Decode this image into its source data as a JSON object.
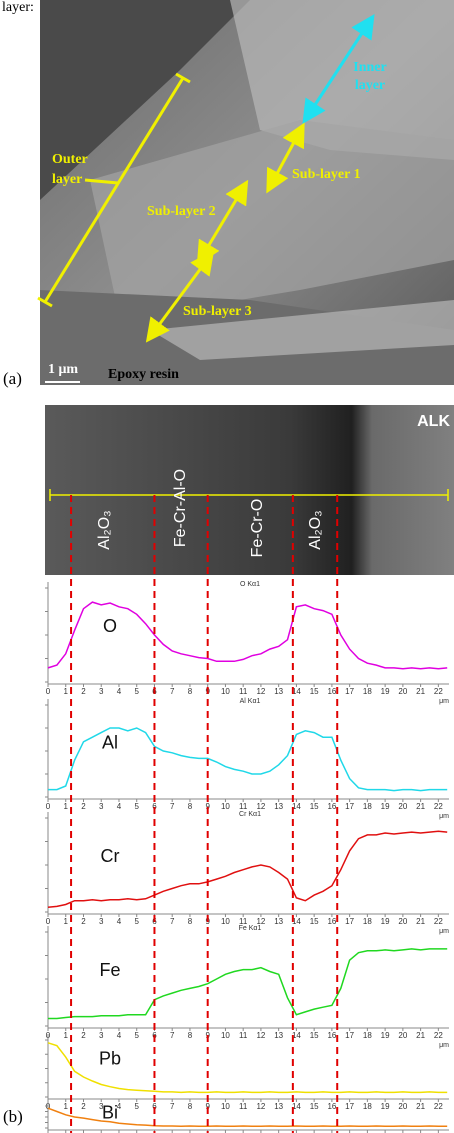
{
  "caption_fragment": "layer:",
  "panel_a": {
    "label": "(a)",
    "inner_layer": [
      "Inner",
      "layer"
    ],
    "outer_layer": [
      "Outer",
      "layer"
    ],
    "sub_layer_1": "Sub-layer 1",
    "sub_layer_2": "Sub-layer 2",
    "sub_layer_3": "Sub-layer 3",
    "epoxy": "Epoxy resin",
    "scale_bar": "1 μm"
  },
  "panel_b": {
    "label": "(b)",
    "corner_tag": "ALK",
    "phases": [
      "Al₂O₃",
      "Fe-Cr-Al-O",
      "Fe-Cr-O",
      "Al₂O₃"
    ],
    "boundaries": [
      1.3,
      6,
      9,
      13.8,
      16.3
    ],
    "xlim": [
      0,
      22.6
    ],
    "xticks": [
      0,
      1,
      2,
      3,
      4,
      5,
      6,
      7,
      8,
      9,
      10,
      11,
      12,
      13,
      14,
      15,
      16,
      17,
      18,
      19,
      20,
      21,
      22
    ],
    "x_unit": "μm",
    "ylim": [
      0,
      100
    ],
    "x": [
      0,
      0.5,
      1,
      1.5,
      2,
      2.5,
      3,
      3.5,
      4,
      4.5,
      5,
      5.5,
      6,
      6.5,
      7,
      7.5,
      8,
      8.5,
      9,
      9.5,
      10,
      10.5,
      11,
      11.5,
      12,
      12.5,
      13,
      13.5,
      14,
      14.5,
      15,
      15.5,
      16,
      16.5,
      17,
      17.5,
      18,
      18.5,
      19,
      19.5,
      20,
      20.5,
      21,
      21.5,
      22,
      22.5
    ],
    "scans": [
      {
        "element": "O",
        "title": "O Kα1",
        "color": "#e000e0",
        "values": [
          15,
          18,
          30,
          55,
          78,
          85,
          82,
          84,
          80,
          78,
          72,
          62,
          50,
          40,
          33,
          30,
          28,
          26,
          25,
          22,
          22,
          22,
          24,
          28,
          30,
          35,
          38,
          45,
          80,
          82,
          78,
          76,
          72,
          50,
          35,
          25,
          20,
          18,
          15,
          15,
          14,
          15,
          14,
          15,
          14,
          15
        ]
      },
      {
        "element": "Al",
        "title": "Al Kα1",
        "color": "#20d8e8",
        "values": [
          8,
          8,
          12,
          40,
          60,
          65,
          70,
          75,
          75,
          72,
          75,
          70,
          55,
          50,
          48,
          45,
          43,
          42,
          42,
          38,
          33,
          30,
          28,
          25,
          25,
          28,
          35,
          45,
          68,
          72,
          70,
          65,
          65,
          40,
          20,
          10,
          8,
          8,
          8,
          7,
          8,
          8,
          7,
          8,
          8,
          8
        ]
      },
      {
        "element": "Cr",
        "title": "Cr Kα1",
        "color": "#e01010",
        "values": [
          5,
          6,
          8,
          12,
          12,
          13,
          12,
          13,
          13,
          14,
          13,
          14,
          18,
          22,
          25,
          28,
          30,
          30,
          32,
          35,
          38,
          42,
          45,
          48,
          50,
          48,
          42,
          35,
          15,
          12,
          18,
          22,
          28,
          45,
          65,
          78,
          82,
          82,
          84,
          83,
          84,
          85,
          84,
          85,
          86,
          85
        ]
      },
      {
        "element": "Fe",
        "title": "Fe Kα1",
        "color": "#20d820",
        "values": [
          8,
          8,
          9,
          10,
          10,
          10,
          11,
          11,
          11,
          12,
          12,
          12,
          28,
          32,
          35,
          38,
          40,
          42,
          45,
          50,
          55,
          58,
          60,
          60,
          62,
          58,
          55,
          30,
          12,
          15,
          18,
          20,
          22,
          40,
          70,
          78,
          80,
          80,
          81,
          80,
          81,
          82,
          81,
          82,
          82,
          82
        ]
      },
      {
        "element": "Pb",
        "title": null,
        "color": "#f0e000",
        "values": [
          95,
          90,
          70,
          45,
          35,
          28,
          22,
          18,
          15,
          13,
          12,
          11,
          10,
          9,
          9,
          8,
          9,
          8,
          8,
          9,
          8,
          8,
          9,
          8,
          8,
          9,
          8,
          8,
          9,
          8,
          8,
          9,
          8,
          8,
          9,
          8,
          8,
          9,
          8,
          8,
          9,
          8,
          8,
          9,
          8,
          8
        ]
      },
      {
        "element": "Bi",
        "title": null,
        "color": "#f08010",
        "values": [
          90,
          75,
          60,
          50,
          45,
          38,
          32,
          28,
          22,
          18,
          15,
          13,
          10,
          9,
          9,
          8,
          9,
          8,
          8,
          9,
          8,
          8,
          9,
          8,
          8,
          9,
          8,
          8,
          9,
          8,
          8,
          9,
          8,
          8,
          9,
          8,
          8,
          9,
          8,
          8,
          9,
          8,
          8,
          9,
          8,
          8
        ]
      }
    ]
  }
}
